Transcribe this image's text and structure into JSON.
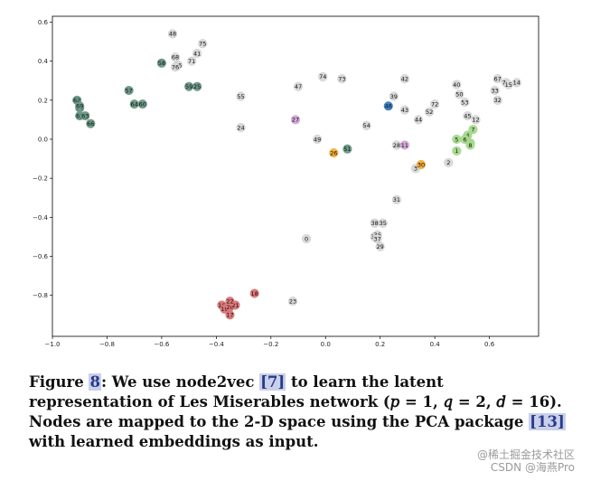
{
  "chart_data": {
    "type": "scatter",
    "title": "",
    "xlabel": "",
    "ylabel": "",
    "xlim": [
      -1.0,
      0.78
    ],
    "ylim": [
      -1.01,
      0.63
    ],
    "xticks": [
      -1.0,
      -0.8,
      -0.6,
      -0.4,
      -0.2,
      0.0,
      0.2,
      0.4,
      0.6
    ],
    "yticks": [
      0.6,
      0.4,
      0.2,
      0.0,
      -0.2,
      -0.4,
      -0.6,
      -0.8
    ],
    "xtick_labels": [
      "−1.0",
      "−0.8",
      "−0.6",
      "−0.4",
      "−0.2",
      "0.0",
      "0.2",
      "0.4",
      "0.6"
    ],
    "ytick_labels": [
      "0.6",
      "0.4",
      "0.2",
      "0.0",
      "−0.2",
      "−0.4",
      "−0.6",
      "−0.8"
    ],
    "colors": {
      "teal": "#6f9c8a",
      "red": "#e0797c",
      "green": "#a9dc8f",
      "orange": "#f6b03d",
      "blue": "#3f86c4",
      "pink": "#d6a9dc",
      "grey": "#d9d9d9"
    },
    "points": [
      {
        "id": "0",
        "x": -0.07,
        "y": -0.51,
        "group": "grey"
      },
      {
        "id": "1",
        "x": 0.48,
        "y": -0.06,
        "group": "green"
      },
      {
        "id": "2",
        "x": 0.45,
        "y": -0.12,
        "group": "grey"
      },
      {
        "id": "3",
        "x": 0.33,
        "y": -0.15,
        "group": "grey"
      },
      {
        "id": "4",
        "x": 0.52,
        "y": 0.02,
        "group": "green"
      },
      {
        "id": "5",
        "x": 0.48,
        "y": 0.0,
        "group": "green"
      },
      {
        "id": "6",
        "x": 0.51,
        "y": 0.0,
        "group": "green"
      },
      {
        "id": "7",
        "x": 0.54,
        "y": 0.05,
        "group": "green"
      },
      {
        "id": "9",
        "x": 0.53,
        "y": -0.02,
        "group": "green"
      },
      {
        "id": "12",
        "x": 0.55,
        "y": 0.1,
        "group": "grey"
      },
      {
        "id": "16",
        "x": -0.38,
        "y": -0.85,
        "group": "red"
      },
      {
        "id": "17",
        "x": -0.35,
        "y": -0.9,
        "group": "red"
      },
      {
        "id": "18",
        "x": -0.26,
        "y": -0.79,
        "group": "red"
      },
      {
        "id": "19",
        "x": -0.37,
        "y": -0.87,
        "group": "red"
      },
      {
        "id": "20",
        "x": -0.35,
        "y": -0.86,
        "group": "red"
      },
      {
        "id": "21",
        "x": -0.33,
        "y": -0.85,
        "group": "red"
      },
      {
        "id": "22",
        "x": -0.35,
        "y": -0.83,
        "group": "red"
      },
      {
        "id": "23",
        "x": -0.12,
        "y": -0.83,
        "group": "grey"
      },
      {
        "id": "24",
        "x": -0.31,
        "y": 0.06,
        "group": "grey"
      },
      {
        "id": "26",
        "x": 0.03,
        "y": -0.07,
        "group": "orange"
      },
      {
        "id": "27",
        "x": -0.11,
        "y": 0.1,
        "group": "pink"
      },
      {
        "id": "28",
        "x": 0.26,
        "y": -0.03,
        "group": "grey"
      },
      {
        "id": "29",
        "x": 0.2,
        "y": -0.55,
        "group": "grey"
      },
      {
        "id": "30",
        "x": 0.35,
        "y": -0.13,
        "group": "orange"
      },
      {
        "id": "31",
        "x": 0.26,
        "y": -0.31,
        "group": "grey"
      },
      {
        "id": "32",
        "x": 0.63,
        "y": 0.2,
        "group": "grey"
      },
      {
        "id": "33",
        "x": 0.62,
        "y": 0.25,
        "group": "grey"
      },
      {
        "id": "34",
        "x": 0.18,
        "y": -0.5,
        "group": "grey"
      },
      {
        "id": "35",
        "x": 0.21,
        "y": -0.43,
        "group": "grey"
      },
      {
        "id": "36",
        "x": 0.19,
        "y": -0.49,
        "group": "grey"
      },
      {
        "id": "38",
        "x": 0.18,
        "y": -0.43,
        "group": "grey"
      },
      {
        "id": "39",
        "x": 0.25,
        "y": 0.22,
        "group": "grey"
      },
      {
        "id": "40",
        "x": 0.48,
        "y": 0.28,
        "group": "grey"
      },
      {
        "id": "41",
        "x": -0.47,
        "y": 0.44,
        "group": "grey"
      },
      {
        "id": "42",
        "x": 0.29,
        "y": 0.31,
        "group": "grey"
      },
      {
        "id": "43",
        "x": 0.29,
        "y": 0.15,
        "group": "grey"
      },
      {
        "id": "44",
        "x": 0.34,
        "y": 0.1,
        "group": "grey"
      },
      {
        "id": "45",
        "x": 0.52,
        "y": 0.12,
        "group": "grey"
      },
      {
        "id": "46",
        "x": 0.23,
        "y": 0.17,
        "group": "blue"
      },
      {
        "id": "47",
        "x": -0.1,
        "y": 0.27,
        "group": "grey"
      },
      {
        "id": "48",
        "x": -0.56,
        "y": 0.54,
        "group": "grey"
      },
      {
        "id": "49",
        "x": -0.03,
        "y": 0.0,
        "group": "grey"
      },
      {
        "id": "50",
        "x": 0.49,
        "y": 0.23,
        "group": "grey"
      },
      {
        "id": "51",
        "x": 0.08,
        "y": -0.05,
        "group": "teal"
      },
      {
        "id": "52",
        "x": 0.38,
        "y": 0.14,
        "group": "grey"
      },
      {
        "id": "53",
        "x": 0.51,
        "y": 0.19,
        "group": "grey"
      },
      {
        "id": "54",
        "x": 0.15,
        "y": 0.07,
        "group": "grey"
      },
      {
        "id": "55",
        "x": -0.31,
        "y": 0.22,
        "group": "grey"
      },
      {
        "id": "56",
        "x": -0.54,
        "y": 0.38,
        "group": "grey"
      },
      {
        "id": "57",
        "x": -0.72,
        "y": 0.25,
        "group": "teal"
      },
      {
        "id": "58",
        "x": -0.6,
        "y": 0.39,
        "group": "teal"
      },
      {
        "id": "59",
        "x": -0.5,
        "y": 0.27,
        "group": "teal"
      },
      {
        "id": "60",
        "x": -0.67,
        "y": 0.18,
        "group": "teal"
      },
      {
        "id": "61",
        "x": -0.9,
        "y": 0.12,
        "group": "teal"
      },
      {
        "id": "62",
        "x": -0.91,
        "y": 0.2,
        "group": "teal"
      },
      {
        "id": "63",
        "x": -0.88,
        "y": 0.12,
        "group": "teal"
      },
      {
        "id": "64",
        "x": -0.7,
        "y": 0.18,
        "group": "teal"
      },
      {
        "id": "65",
        "x": -0.9,
        "y": 0.16,
        "group": "teal"
      },
      {
        "id": "66",
        "x": -0.86,
        "y": 0.08,
        "group": "teal"
      },
      {
        "id": "67",
        "x": 0.63,
        "y": 0.31,
        "group": "grey"
      },
      {
        "id": "68",
        "x": -0.55,
        "y": 0.42,
        "group": "grey"
      },
      {
        "id": "69",
        "x": -0.9,
        "y": 0.17,
        "group": "teal"
      },
      {
        "id": "70",
        "x": 0.66,
        "y": 0.29,
        "group": "grey"
      },
      {
        "id": "71",
        "x": -0.49,
        "y": 0.4,
        "group": "grey"
      },
      {
        "id": "72",
        "x": 0.4,
        "y": 0.18,
        "group": "grey"
      },
      {
        "id": "73",
        "x": 0.06,
        "y": 0.31,
        "group": "grey"
      },
      {
        "id": "74",
        "x": -0.01,
        "y": 0.32,
        "group": "grey"
      },
      {
        "id": "75",
        "x": -0.45,
        "y": 0.49,
        "group": "grey"
      },
      {
        "id": "76",
        "x": -0.55,
        "y": 0.37,
        "group": "grey"
      },
      {
        "id": "15",
        "x": 0.67,
        "y": 0.28,
        "group": "grey"
      },
      {
        "id": "14",
        "x": 0.7,
        "y": 0.29,
        "group": "grey"
      },
      {
        "id": "25",
        "x": -0.47,
        "y": 0.27,
        "group": "teal"
      },
      {
        "id": "11",
        "x": 0.29,
        "y": -0.03,
        "group": "pink"
      },
      {
        "id": "37",
        "x": 0.19,
        "y": -0.51,
        "group": "grey"
      },
      {
        "id": "8",
        "x": 0.53,
        "y": -0.03,
        "group": "green"
      }
    ]
  },
  "caption": {
    "prefix": "Figure ",
    "figure_number": "8",
    "text_a": ": We use node2vec ",
    "ref_a": "[7]",
    "text_b": " to learn the latent representation of Les Miserables network (𝑝 = 1, 𝑞 = 2, 𝑑 = 16). Nodes are mapped to the 2-D space using the PCA package ",
    "ref_b": "[13]",
    "text_c": " with learned embeddings as input."
  },
  "watermark": {
    "line1": "@稀土掘金技术社区",
    "line2": "CSDN @海燕Pro"
  }
}
